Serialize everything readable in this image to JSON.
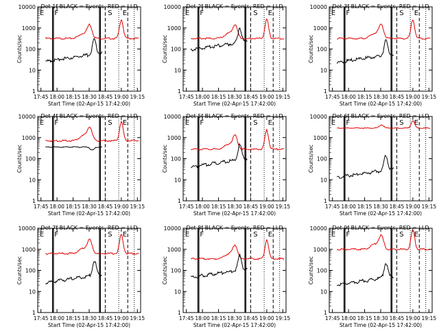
{
  "figure": {
    "colors": {
      "black": "#000000",
      "red": "#e00000",
      "background": "#ffffff"
    }
  },
  "chart_data": [
    {
      "type": "line",
      "title": "Det 1f BLACK = Events, RED = LLD",
      "xlabel": "Start Time (02-Apr-15 17:42:00)",
      "ylabel": "Counts/sec",
      "x_ticks": [
        "17:45",
        "18:00",
        "18:15",
        "18:30",
        "18:45",
        "19:00",
        "19:15"
      ],
      "y_ticks": [
        "1",
        "10",
        "100",
        "1000",
        "10000"
      ],
      "markers": [
        "E",
        "F",
        "S",
        "E"
      ]
    },
    {
      "type": "line",
      "title": "Det 2f BLACK = Events, RED = LLD",
      "xlabel": "Start Time (02-Apr-15 17:42:00)",
      "ylabel": "Counts/sec",
      "x_ticks": [
        "17:45",
        "18:00",
        "18:15",
        "18:30",
        "18:45",
        "19:00",
        "19:15"
      ],
      "y_ticks": [
        "1",
        "10",
        "100",
        "1000",
        "10000"
      ],
      "markers": [
        "E",
        "F",
        "S",
        "E"
      ]
    },
    {
      "type": "line",
      "title": "Det 3f BLACK = Events, RED = LLD",
      "xlabel": "Start Time (02-Apr-15 17:42:00)",
      "ylabel": "Counts/sec",
      "x_ticks": [
        "17:45",
        "18:00",
        "18:15",
        "18:30",
        "18:45",
        "19:00",
        "19:15"
      ],
      "y_ticks": [
        "1",
        "10",
        "100",
        "1000",
        "10000"
      ],
      "markers": [
        "E",
        "F",
        "S",
        "E"
      ]
    },
    {
      "type": "line",
      "title": "Det 4f BLACK = Events, RED = LLD",
      "xlabel": "Start Time (02-Apr-15 17:42:00)",
      "ylabel": "Counts/sec",
      "x_ticks": [
        "17:45",
        "18:00",
        "18:15",
        "18:30",
        "18:45",
        "19:00",
        "19:15"
      ],
      "y_ticks": [
        "1",
        "10",
        "100",
        "1000",
        "10000"
      ],
      "markers": [
        "E",
        "F",
        "S",
        "E"
      ]
    },
    {
      "type": "line",
      "title": "Det 5f BLACK = Events, RED = LLD",
      "xlabel": "Start Time (02-Apr-15 17:42:00)",
      "ylabel": "Counts/sec",
      "x_ticks": [
        "17:45",
        "18:00",
        "18:15",
        "18:30",
        "18:45",
        "19:00",
        "19:15"
      ],
      "y_ticks": [
        "1",
        "10",
        "100",
        "1000",
        "10000"
      ],
      "markers": [
        "E",
        "F",
        "S",
        "E"
      ]
    },
    {
      "type": "line",
      "title": "Det 6f BLACK = Events, RED = LLD",
      "xlabel": "Start Time (02-Apr-15 17:42:00)",
      "ylabel": "Counts/sec",
      "x_ticks": [
        "17:45",
        "18:00",
        "18:15",
        "18:30",
        "18:45",
        "19:00",
        "19:15"
      ],
      "y_ticks": [
        "1",
        "10",
        "100",
        "1000",
        "10000"
      ],
      "markers": [
        "E",
        "F",
        "S",
        "E"
      ]
    },
    {
      "type": "line",
      "title": "Det 7f BLACK = Events, RED = LLD",
      "xlabel": "Start Time (02-Apr-15 17:42:00)",
      "ylabel": "Counts/sec",
      "x_ticks": [
        "17:45",
        "18:00",
        "18:15",
        "18:30",
        "18:45",
        "19:00",
        "19:15"
      ],
      "y_ticks": [
        "1",
        "10",
        "100",
        "1000",
        "10000"
      ],
      "markers": [
        "E",
        "F",
        "S",
        "E"
      ]
    },
    {
      "type": "line",
      "title": "Det 8f BLACK = Events, RED = LLD",
      "xlabel": "Start Time (02-Apr-15 17:42:00)",
      "ylabel": "Counts/sec",
      "x_ticks": [
        "17:45",
        "18:00",
        "18:15",
        "18:30",
        "18:45",
        "19:00",
        "19:15"
      ],
      "y_ticks": [
        "1",
        "10",
        "100",
        "1000",
        "10000"
      ],
      "markers": [
        "E",
        "F",
        "S",
        "E"
      ]
    },
    {
      "type": "line",
      "title": "Det 9f BLACK = Events, RED = LLD",
      "xlabel": "Start Time (02-Apr-15 17:42:00)",
      "ylabel": "Counts/sec",
      "x_ticks": [
        "17:45",
        "18:00",
        "18:15",
        "18:30",
        "18:45",
        "19:00",
        "19:15"
      ],
      "y_ticks": [
        "1",
        "10",
        "100",
        "1000",
        "10000"
      ],
      "markers": [
        "E",
        "F",
        "S",
        "E"
      ]
    }
  ]
}
